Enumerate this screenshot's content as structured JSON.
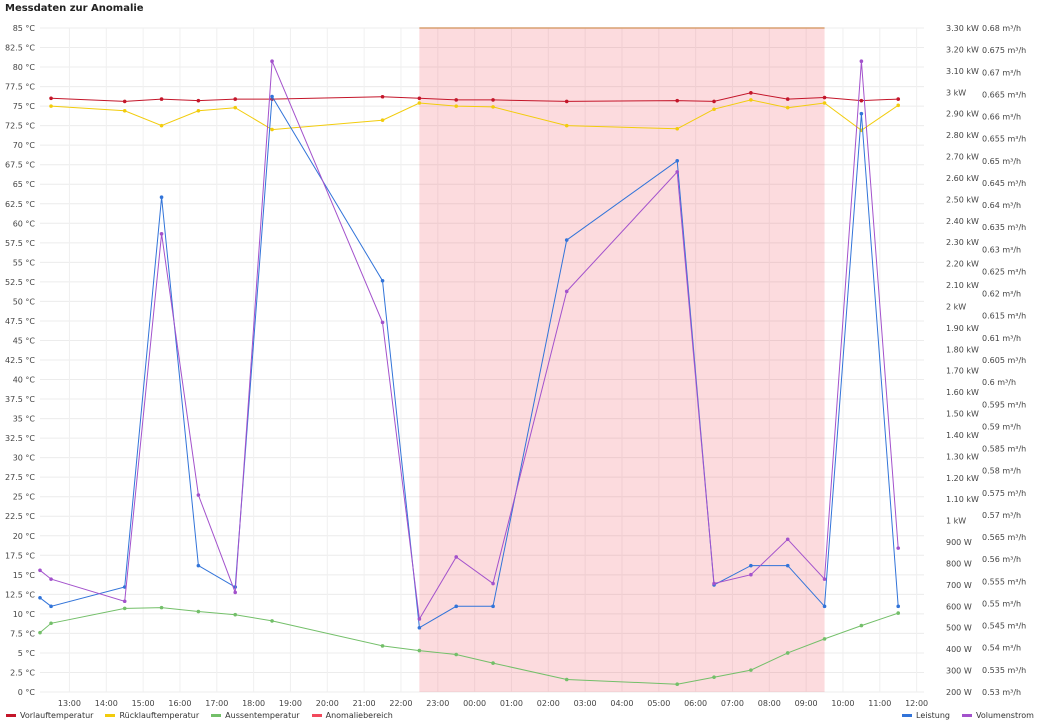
{
  "panel": {
    "title": "Messdaten zur Anomalie"
  },
  "colors": {
    "vorlauf": "#c4162a",
    "ruecklauf": "#f2cc0c",
    "aussen": "#73bf69",
    "anomalie": "#f2495c",
    "leistung": "#3274d9",
    "volumen": "#a352cc"
  },
  "chart_data": {
    "type": "line",
    "x_ticks": [
      "13:00",
      "14:00",
      "15:00",
      "16:00",
      "17:00",
      "18:00",
      "19:00",
      "20:00",
      "21:00",
      "22:00",
      "23:00",
      "00:00",
      "01:00",
      "02:00",
      "03:00",
      "04:00",
      "05:00",
      "06:00",
      "07:00",
      "08:00",
      "09:00",
      "10:00",
      "11:00",
      "12:00"
    ],
    "x_range": [
      12.2,
      36.2
    ],
    "y_left": {
      "range": [
        0,
        85
      ],
      "ticks": [
        "0 °C",
        "2.5 °C",
        "5 °C",
        "7.5 °C",
        "10 °C",
        "12.5 °C",
        "15 °C",
        "17.5 °C",
        "20 °C",
        "22.5 °C",
        "25 °C",
        "27.5 °C",
        "30 °C",
        "32.5 °C",
        "35 °C",
        "37.5 °C",
        "40 °C",
        "42.5 °C",
        "45 °C",
        "47.5 °C",
        "50 °C",
        "52.5 °C",
        "55 °C",
        "57.5 °C",
        "60 °C",
        "62.5 °C",
        "65 °C",
        "67.5 °C",
        "70 °C",
        "72.5 °C",
        "75 °C",
        "77.5 °C",
        "80 °C",
        "82.5 °C",
        "85 °C"
      ]
    },
    "y_right1": {
      "range": [
        0.2,
        3.3
      ],
      "ticks": [
        "200 W",
        "300 W",
        "400 W",
        "500 W",
        "600 W",
        "700 W",
        "800 W",
        "900 W",
        "1 kW",
        "1.10 kW",
        "1.20 kW",
        "1.30 kW",
        "1.40 kW",
        "1.50 kW",
        "1.60 kW",
        "1.70 kW",
        "1.80 kW",
        "1.90 kW",
        "2 kW",
        "2.10 kW",
        "2.20 kW",
        "2.30 kW",
        "2.40 kW",
        "2.50 kW",
        "2.60 kW",
        "2.70 kW",
        "2.80 kW",
        "2.90 kW",
        "3 kW",
        "3.10 kW",
        "3.20 kW",
        "3.30 kW"
      ]
    },
    "y_right2": {
      "range": [
        0.53,
        0.68
      ],
      "ticks": [
        "0.53 m³/h",
        "0.535 m³/h",
        "0.54 m³/h",
        "0.545 m³/h",
        "0.55 m³/h",
        "0.555 m³/h",
        "0.56 m³/h",
        "0.565 m³/h",
        "0.57 m³/h",
        "0.575 m³/h",
        "0.58 m³/h",
        "0.585 m³/h",
        "0.59 m³/h",
        "0.595 m³/h",
        "0.6 m³/h",
        "0.605 m³/h",
        "0.61 m³/h",
        "0.615 m³/h",
        "0.62 m³/h",
        "0.625 m³/h",
        "0.63 m³/h",
        "0.635 m³/h",
        "0.64 m³/h",
        "0.645 m³/h",
        "0.65 m³/h",
        "0.655 m³/h",
        "0.66 m³/h",
        "0.665 m³/h",
        "0.67 m³/h",
        "0.675 m³/h",
        "0.68 m³/h"
      ]
    },
    "anomaly_range": {
      "x": [
        22.5,
        33.5
      ],
      "y_top": 85
    },
    "legend_left": [
      "Vorlauftemperatur",
      "Rücklauftemperatur",
      "Aussentemperatur",
      "Anomaliebereich"
    ],
    "legend_right": [
      "Leistung",
      "Volumenstrom"
    ],
    "series": [
      {
        "name": "Vorlauftemperatur",
        "axis": "left",
        "color": "#c4162a",
        "x": [
          12.5,
          14.5,
          15.5,
          16.5,
          17.5,
          18.5,
          21.5,
          22.5,
          23.5,
          24.5,
          26.5,
          29.5,
          30.5,
          31.5,
          32.5,
          33.5,
          34.5,
          35.5
        ],
        "y": [
          76.0,
          75.6,
          75.9,
          75.7,
          75.9,
          75.9,
          76.2,
          76.0,
          75.8,
          75.8,
          75.6,
          75.7,
          75.6,
          76.7,
          75.9,
          76.1,
          75.7,
          75.9
        ]
      },
      {
        "name": "Rücklauftemperatur",
        "axis": "left",
        "color": "#f2cc0c",
        "x": [
          12.5,
          14.5,
          15.5,
          16.5,
          17.5,
          18.5,
          21.5,
          22.5,
          23.5,
          24.5,
          26.5,
          29.5,
          30.5,
          31.5,
          32.5,
          33.5,
          34.5,
          35.5
        ],
        "y": [
          75.0,
          74.4,
          72.5,
          74.4,
          74.8,
          72.0,
          73.2,
          75.4,
          75.0,
          74.9,
          72.5,
          72.1,
          74.6,
          75.8,
          74.8,
          75.4,
          71.9,
          75.1
        ]
      },
      {
        "name": "Aussentemperatur",
        "axis": "left",
        "color": "#73bf69",
        "x": [
          12.2,
          12.5,
          14.5,
          15.5,
          16.5,
          17.5,
          18.5,
          21.5,
          22.5,
          23.5,
          24.5,
          26.5,
          29.5,
          30.5,
          31.5,
          32.5,
          33.5,
          34.5,
          35.5
        ],
        "y": [
          7.6,
          8.8,
          10.7,
          10.8,
          10.3,
          9.9,
          9.1,
          5.9,
          5.3,
          4.8,
          3.7,
          1.6,
          1.0,
          1.9,
          2.8,
          5.0,
          6.8,
          8.5,
          10.1
        ]
      },
      {
        "name": "Leistung",
        "axis": "right1",
        "color": "#3274d9",
        "x": [
          12.2,
          12.5,
          14.5,
          15.5,
          16.5,
          17.5,
          18.5,
          21.5,
          22.5,
          23.5,
          24.5,
          26.5,
          29.5,
          30.5,
          31.5,
          32.5,
          33.5,
          34.5,
          35.5
        ],
        "y": [
          0.64,
          0.6,
          0.69,
          2.51,
          0.79,
          0.69,
          2.98,
          2.12,
          0.5,
          0.6,
          0.6,
          2.31,
          2.68,
          0.7,
          0.79,
          0.79,
          0.6,
          2.9,
          0.6
        ]
      },
      {
        "name": "Volumenstrom",
        "axis": "right2",
        "color": "#a352cc",
        "x": [
          12.2,
          12.5,
          14.5,
          15.5,
          16.5,
          17.5,
          18.5,
          21.5,
          22.5,
          23.5,
          24.5,
          26.5,
          29.5,
          30.5,
          31.5,
          32.5,
          33.5,
          34.5,
          35.5
        ],
        "y": [
          0.5575,
          0.5555,
          0.5505,
          0.6335,
          0.5745,
          0.5525,
          0.6725,
          0.6135,
          0.5465,
          0.5605,
          0.5545,
          0.6205,
          0.6475,
          0.5545,
          0.5565,
          0.5645,
          0.5555,
          0.6725,
          0.5625
        ]
      }
    ]
  }
}
